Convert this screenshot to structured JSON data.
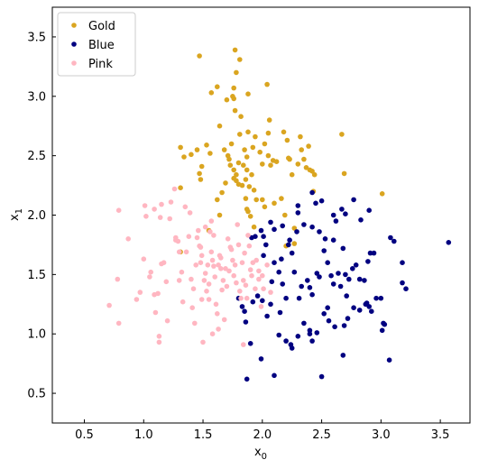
{
  "chart_data": {
    "type": "scatter",
    "xlabel": "x",
    "xlabel_sub": "0",
    "ylabel": "x",
    "ylabel_sub": "1",
    "xlim": [
      0.23,
      3.75
    ],
    "ylim": [
      0.25,
      3.75
    ],
    "xticks": [
      0.5,
      1.0,
      1.5,
      2.0,
      2.5,
      3.0,
      3.5
    ],
    "xtick_labels": [
      "0.5",
      "1.0",
      "1.5",
      "2.0",
      "2.5",
      "3.0",
      "3.5"
    ],
    "yticks": [
      0.5,
      1.0,
      1.5,
      2.0,
      2.5,
      3.0,
      3.5
    ],
    "ytick_labels": [
      "0.5",
      "1.0",
      "1.5",
      "2.0",
      "2.5",
      "3.0",
      "3.5"
    ],
    "grid": false,
    "legend_position": "top-left",
    "series": [
      {
        "name": "Gold",
        "color": "#daa520",
        "points": [
          [
            1.47,
            3.34
          ],
          [
            1.77,
            3.39
          ],
          [
            1.81,
            3.31
          ],
          [
            1.78,
            3.2
          ],
          [
            1.88,
            3.02
          ],
          [
            1.76,
            3.07
          ],
          [
            1.75,
            3.0
          ],
          [
            1.76,
            2.98
          ],
          [
            1.62,
            3.08
          ],
          [
            1.57,
            3.03
          ],
          [
            1.7,
            2.97
          ],
          [
            1.77,
            2.88
          ],
          [
            1.82,
            2.83
          ],
          [
            2.04,
            3.1
          ],
          [
            2.06,
            2.8
          ],
          [
            2.05,
            2.69
          ],
          [
            1.88,
            2.7
          ],
          [
            1.81,
            2.68
          ],
          [
            1.74,
            2.6
          ],
          [
            1.64,
            2.75
          ],
          [
            1.68,
            2.55
          ],
          [
            1.56,
            2.52
          ],
          [
            1.53,
            2.59
          ],
          [
            1.45,
            2.55
          ],
          [
            1.4,
            2.51
          ],
          [
            1.34,
            2.49
          ],
          [
            1.31,
            2.57
          ],
          [
            1.49,
            2.41
          ],
          [
            1.47,
            2.35
          ],
          [
            1.48,
            2.3
          ],
          [
            1.71,
            2.5
          ],
          [
            1.72,
            2.47
          ],
          [
            1.73,
            2.42
          ],
          [
            1.76,
            2.38
          ],
          [
            1.78,
            2.34
          ],
          [
            1.8,
            2.44
          ],
          [
            1.84,
            2.42
          ],
          [
            1.85,
            2.55
          ],
          [
            1.87,
            2.49
          ],
          [
            1.87,
            2.38
          ],
          [
            1.91,
            2.34
          ],
          [
            1.92,
            2.57
          ],
          [
            1.94,
            2.66
          ],
          [
            1.98,
            2.53
          ],
          [
            2.0,
            2.43
          ],
          [
            2.02,
            2.6
          ],
          [
            2.05,
            2.5
          ],
          [
            2.07,
            2.42
          ],
          [
            2.09,
            2.46
          ],
          [
            2.12,
            2.45
          ],
          [
            2.18,
            2.7
          ],
          [
            2.21,
            2.63
          ],
          [
            2.22,
            2.48
          ],
          [
            2.23,
            2.47
          ],
          [
            2.25,
            2.34
          ],
          [
            2.3,
            2.43
          ],
          [
            2.33,
            2.55
          ],
          [
            2.35,
            2.47
          ],
          [
            2.37,
            2.4
          ],
          [
            2.4,
            2.38
          ],
          [
            2.42,
            2.37
          ],
          [
            2.44,
            2.34
          ],
          [
            2.43,
            2.2
          ],
          [
            2.39,
            2.58
          ],
          [
            2.32,
            2.66
          ],
          [
            2.67,
            2.68
          ],
          [
            2.69,
            2.35
          ],
          [
            3.01,
            2.18
          ],
          [
            1.76,
            2.31
          ],
          [
            1.78,
            2.29
          ],
          [
            1.8,
            2.26
          ],
          [
            1.83,
            2.25
          ],
          [
            1.86,
            2.3
          ],
          [
            1.89,
            2.24
          ],
          [
            1.93,
            2.21
          ],
          [
            1.95,
            2.13
          ],
          [
            2.0,
            2.13
          ],
          [
            2.02,
            2.07
          ],
          [
            1.69,
            2.27
          ],
          [
            1.66,
            2.19
          ],
          [
            1.62,
            2.13
          ],
          [
            1.64,
            2.0
          ],
          [
            1.86,
            2.14
          ],
          [
            1.87,
            2.05
          ],
          [
            1.88,
            2.03
          ],
          [
            1.9,
            1.99
          ],
          [
            1.93,
            1.9
          ],
          [
            2.16,
            2.14
          ],
          [
            2.19,
            2.0
          ],
          [
            2.27,
            1.89
          ],
          [
            2.27,
            1.76
          ],
          [
            2.2,
            1.74
          ],
          [
            2.1,
            2.1
          ],
          [
            1.31,
            2.23
          ],
          [
            1.31,
            1.69
          ],
          [
            1.55,
            1.87
          ]
        ]
      },
      {
        "name": "Blue",
        "color": "#000080",
        "points": [
          [
            2.42,
            2.19
          ],
          [
            2.3,
            2.08
          ],
          [
            2.3,
            2.02
          ],
          [
            2.17,
            1.91
          ],
          [
            2.1,
            1.88
          ],
          [
            2.07,
            1.94
          ],
          [
            2.03,
            1.75
          ],
          [
            2.01,
            1.82
          ],
          [
            1.99,
            1.87
          ],
          [
            1.94,
            1.82
          ],
          [
            1.91,
            1.81
          ],
          [
            2.5,
            2.12
          ],
          [
            2.45,
            2.1
          ],
          [
            2.6,
            2.0
          ],
          [
            2.62,
            1.95
          ],
          [
            2.67,
            2.05
          ],
          [
            2.7,
            2.01
          ],
          [
            2.77,
            2.13
          ],
          [
            2.83,
            1.96
          ],
          [
            2.9,
            2.04
          ],
          [
            3.08,
            1.81
          ],
          [
            3.11,
            1.78
          ],
          [
            2.68,
            1.72
          ],
          [
            2.6,
            1.79
          ],
          [
            2.53,
            1.8
          ],
          [
            2.48,
            1.86
          ],
          [
            2.42,
            1.9
          ],
          [
            2.35,
            1.92
          ],
          [
            2.29,
            1.86
          ],
          [
            2.23,
            1.79
          ],
          [
            2.22,
            1.75
          ],
          [
            2.16,
            1.63
          ],
          [
            2.1,
            1.6
          ],
          [
            2.01,
            1.66
          ],
          [
            2.08,
            1.44
          ],
          [
            2.14,
            1.52
          ],
          [
            2.17,
            1.42
          ],
          [
            2.25,
            1.68
          ],
          [
            2.27,
            1.52
          ],
          [
            2.31,
            1.3
          ],
          [
            2.38,
            1.45
          ],
          [
            2.4,
            1.39
          ],
          [
            2.46,
            1.51
          ],
          [
            2.48,
            1.48
          ],
          [
            2.52,
            1.7
          ],
          [
            2.55,
            1.6
          ],
          [
            2.58,
            1.49
          ],
          [
            2.6,
            1.42
          ],
          [
            2.64,
            1.51
          ],
          [
            2.66,
            1.4
          ],
          [
            2.7,
            1.5
          ],
          [
            2.73,
            1.46
          ],
          [
            2.76,
            1.55
          ],
          [
            2.79,
            1.58
          ],
          [
            2.82,
            1.46
          ],
          [
            2.86,
            1.45
          ],
          [
            2.89,
            1.61
          ],
          [
            2.91,
            1.68
          ],
          [
            2.94,
            1.68
          ],
          [
            3.0,
            1.3
          ],
          [
            2.96,
            1.3
          ],
          [
            2.92,
            1.19
          ],
          [
            2.87,
            1.25
          ],
          [
            2.82,
            1.2
          ],
          [
            2.77,
            1.22
          ],
          [
            2.72,
            1.13
          ],
          [
            2.69,
            1.07
          ],
          [
            2.61,
            1.06
          ],
          [
            2.56,
            1.11
          ],
          [
            2.52,
            1.17
          ],
          [
            2.46,
            1.01
          ],
          [
            2.4,
            1.03
          ],
          [
            2.35,
            1.09
          ],
          [
            2.3,
            0.98
          ],
          [
            2.24,
            0.91
          ],
          [
            2.2,
            0.94
          ],
          [
            2.14,
            0.99
          ],
          [
            2.07,
            1.25
          ],
          [
            2.04,
            1.15
          ],
          [
            2.0,
            1.28
          ],
          [
            1.96,
            1.32
          ],
          [
            1.92,
            1.27
          ],
          [
            1.85,
            1.19
          ],
          [
            1.83,
            1.23
          ],
          [
            1.8,
            1.3
          ],
          [
            1.86,
            1.1
          ],
          [
            1.9,
            0.92
          ],
          [
            1.99,
            0.79
          ],
          [
            1.87,
            0.62
          ],
          [
            2.1,
            0.65
          ],
          [
            2.25,
            0.88
          ],
          [
            2.4,
            1.0
          ],
          [
            2.42,
            0.94
          ],
          [
            2.5,
            0.64
          ],
          [
            2.68,
            0.82
          ],
          [
            3.07,
            0.78
          ],
          [
            3.02,
            1.09
          ],
          [
            3.01,
            1.03
          ],
          [
            3.03,
            1.08
          ],
          [
            3.18,
            1.43
          ],
          [
            3.21,
            1.38
          ],
          [
            3.18,
            1.6
          ],
          [
            3.57,
            1.77
          ],
          [
            2.88,
            1.26
          ],
          [
            2.9,
            1.23
          ],
          [
            2.71,
            1.32
          ],
          [
            2.55,
            1.22
          ],
          [
            2.42,
            1.33
          ],
          [
            2.33,
            1.4
          ],
          [
            2.2,
            1.3
          ],
          [
            2.15,
            1.18
          ]
        ]
      },
      {
        "name": "Pink",
        "color": "#ffb6c1",
        "points": [
          [
            0.71,
            1.24
          ],
          [
            0.78,
            1.46
          ],
          [
            0.79,
            1.09
          ],
          [
            0.79,
            2.04
          ],
          [
            0.87,
            1.8
          ],
          [
            0.94,
            1.29
          ],
          [
            0.97,
            1.35
          ],
          [
            1.0,
            1.63
          ],
          [
            1.02,
            1.99
          ],
          [
            1.01,
            2.08
          ],
          [
            1.05,
            1.48
          ],
          [
            1.06,
            1.52
          ],
          [
            1.09,
            2.05
          ],
          [
            1.09,
            1.33
          ],
          [
            1.1,
            1.18
          ],
          [
            1.12,
            1.34
          ],
          [
            1.13,
            0.98
          ],
          [
            1.13,
            0.93
          ],
          [
            1.14,
            1.98
          ],
          [
            1.15,
            2.09
          ],
          [
            1.15,
            1.59
          ],
          [
            1.17,
            1.6
          ],
          [
            1.19,
            1.44
          ],
          [
            1.2,
            1.11
          ],
          [
            1.22,
            1.97
          ],
          [
            1.23,
            2.11
          ],
          [
            1.26,
            2.22
          ],
          [
            1.27,
            1.81
          ],
          [
            1.29,
            1.78
          ],
          [
            1.3,
            1.45
          ],
          [
            1.32,
            1.52
          ],
          [
            1.33,
            1.27
          ],
          [
            1.36,
            1.69
          ],
          [
            1.38,
            1.82
          ],
          [
            1.4,
            1.46
          ],
          [
            1.41,
            1.22
          ],
          [
            1.42,
            1.38
          ],
          [
            1.43,
            1.09
          ],
          [
            1.44,
            1.58
          ],
          [
            1.46,
            1.87
          ],
          [
            1.47,
            1.74
          ],
          [
            1.48,
            1.6
          ],
          [
            1.49,
            1.66
          ],
          [
            1.49,
            1.29
          ],
          [
            1.5,
            0.93
          ],
          [
            1.51,
            1.45
          ],
          [
            1.52,
            1.9
          ],
          [
            1.53,
            1.36
          ],
          [
            1.54,
            1.58
          ],
          [
            1.55,
            1.42
          ],
          [
            1.56,
            1.86
          ],
          [
            1.57,
            1.95
          ],
          [
            1.57,
            1.69
          ],
          [
            1.58,
            1.62
          ],
          [
            1.59,
            1.57
          ],
          [
            1.6,
            1.48
          ],
          [
            1.61,
            1.25
          ],
          [
            1.62,
            1.17
          ],
          [
            1.63,
            1.58
          ],
          [
            1.64,
            1.66
          ],
          [
            1.65,
            1.55
          ],
          [
            1.66,
            1.37
          ],
          [
            1.67,
            1.45
          ],
          [
            1.68,
            1.12
          ],
          [
            1.69,
            1.55
          ],
          [
            1.7,
            1.4
          ],
          [
            1.71,
            1.8
          ],
          [
            1.72,
            1.53
          ],
          [
            1.73,
            1.73
          ],
          [
            1.74,
            1.71
          ],
          [
            1.75,
            1.62
          ],
          [
            1.76,
            1.49
          ],
          [
            1.77,
            1.58
          ],
          [
            1.78,
            1.43
          ],
          [
            1.79,
            1.92
          ],
          [
            1.8,
            1.75
          ],
          [
            1.81,
            1.36
          ],
          [
            1.82,
            1.3
          ],
          [
            1.83,
            1.6
          ],
          [
            1.84,
            1.45
          ],
          [
            1.85,
            1.68
          ],
          [
            1.86,
            1.41
          ],
          [
            1.87,
            1.3
          ],
          [
            1.88,
            1.83
          ],
          [
            1.89,
            1.74
          ],
          [
            1.9,
            1.54
          ],
          [
            1.91,
            1.49
          ],
          [
            1.92,
            1.6
          ],
          [
            1.94,
            1.38
          ],
          [
            1.95,
            1.62
          ],
          [
            1.97,
            1.46
          ],
          [
            1.99,
            1.23
          ],
          [
            2.01,
            1.38
          ],
          [
            2.04,
            1.58
          ],
          [
            2.07,
            1.35
          ],
          [
            1.84,
            0.91
          ],
          [
            1.63,
            1.04
          ],
          [
            1.58,
            1.0
          ],
          [
            1.3,
            1.69
          ],
          [
            1.27,
            1.79
          ],
          [
            1.35,
            2.07
          ],
          [
            1.39,
            2.02
          ],
          [
            1.45,
            1.81
          ],
          [
            1.48,
            1.73
          ],
          [
            1.52,
            1.51
          ],
          [
            1.55,
            1.29
          ],
          [
            1.59,
            1.83
          ],
          [
            1.65,
            1.64
          ],
          [
            1.97,
            1.53
          ],
          [
            2.0,
            1.49
          ]
        ]
      }
    ]
  }
}
